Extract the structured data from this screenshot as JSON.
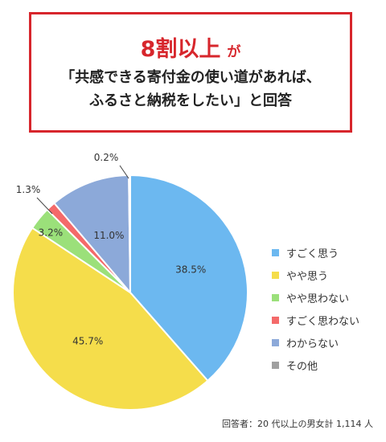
{
  "headline": {
    "emphasis": "8割以上",
    "particle": "が",
    "line2": "「共感できる寄付金の使い道があれば、",
    "line3": "ふるさと納税をしたい」と回答"
  },
  "chart_data": {
    "type": "pie",
    "title": "",
    "unit": "%",
    "slices": [
      {
        "label": "すごく思う",
        "value": 38.5,
        "value_label": "38.5%",
        "color": "#6cb8f0"
      },
      {
        "label": "やや思う",
        "value": 45.7,
        "value_label": "45.7%",
        "color": "#f5dd4b"
      },
      {
        "label": "やや思わない",
        "value": 3.2,
        "value_label": "3.2%",
        "color": "#9be07a"
      },
      {
        "label": "すごく思わない",
        "value": 1.3,
        "value_label": "1.3%",
        "color": "#f46a6a"
      },
      {
        "label": "わからない",
        "value": 11.0,
        "value_label": "11.0%",
        "color": "#8ca9d9"
      },
      {
        "label": "その他",
        "value": 0.2,
        "value_label": "0.2%",
        "color": "#a0a0a0"
      }
    ],
    "start": "12 o'clock",
    "direction": "clockwise",
    "legend_position": "right"
  },
  "footnote": "回答者：20 代以上の男女計 1,114 人"
}
